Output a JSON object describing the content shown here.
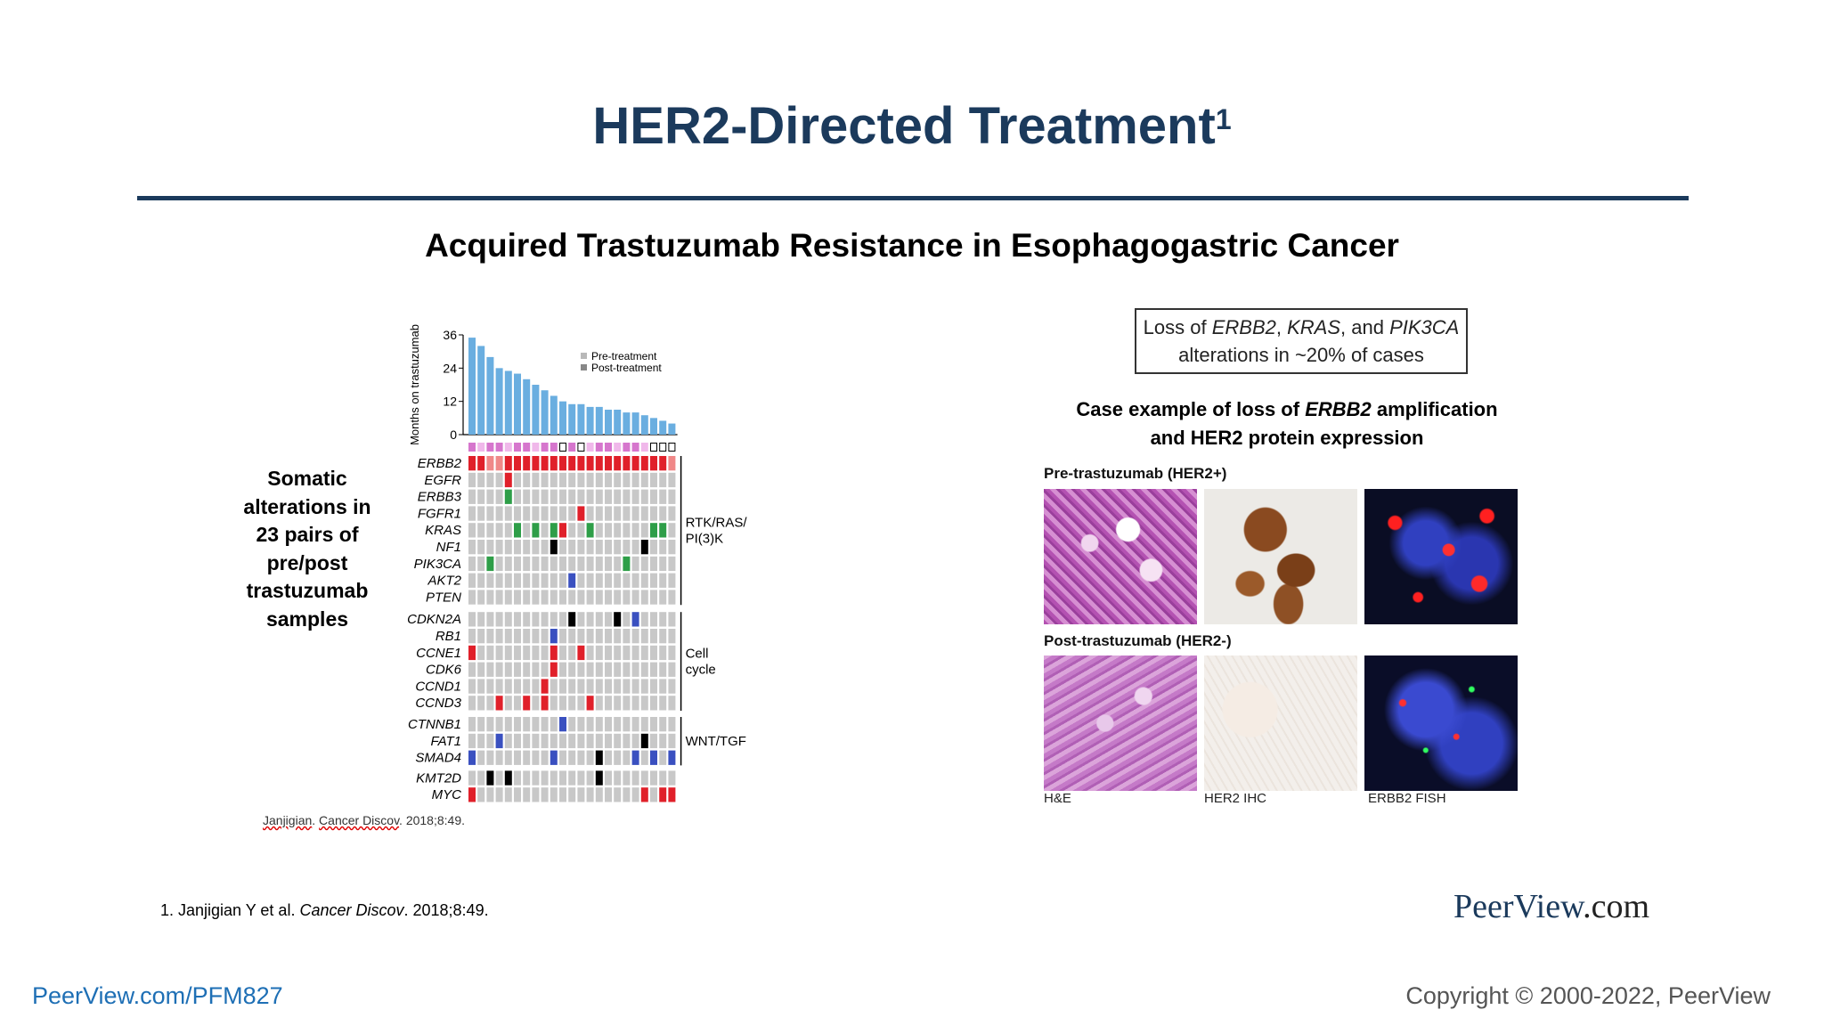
{
  "slide": {
    "title": "HER2-Directed Treatment",
    "title_sup": "1",
    "subtitle": "Acquired Trastuzumab Resistance in Esophagogastric Cancer",
    "somatic_label": [
      "Somatic",
      "alterations in",
      "23 pairs of",
      "pre/post",
      "trastuzumab",
      "samples"
    ],
    "source_small": {
      "author": "Janjigian",
      "journal": "Cancer Discov",
      "rest": ". 2018;8:49."
    },
    "footnote": {
      "prefix": "1. Janjigian Y et al. ",
      "journal": "Cancer Discov",
      "suffix": ". 2018;8:49."
    },
    "brand": {
      "name": "PeerView",
      "tld": ".com"
    },
    "footer_url": "PeerView.com/PFM827",
    "copyright": "Copyright © 2000-2022, PeerView"
  },
  "right_panel": {
    "callout": {
      "loss": "Loss of ",
      "g1": "ERBB2",
      "sep1": ", ",
      "g2": "KRAS",
      "sep2": ", and ",
      "g3": "PIK3CA",
      "line2": "alterations in ~20% of cases"
    },
    "case_title": {
      "line1_prefix": "Case example of loss of ",
      "line1_gene": "ERBB2",
      "line1_suffix": " amplification",
      "line2": "and HER2 protein expression"
    },
    "pre_label": "Pre-trastuzumab (HER2+)",
    "post_label": "Post-trastuzumab (HER2-)",
    "captions": [
      "H&E",
      "HER2 IHC",
      "ERBB2 FISH"
    ]
  },
  "chart_data": {
    "type": "bar",
    "ylabel": "Months on trastuzumab",
    "yticks": [
      0,
      12,
      24,
      36
    ],
    "ylim": [
      0,
      36
    ],
    "values": [
      35,
      32,
      28,
      24,
      23,
      22,
      20,
      18,
      16,
      14,
      12,
      11,
      11,
      10,
      10,
      9,
      9,
      8,
      8,
      7,
      6,
      5,
      4
    ],
    "legend": [
      "Pre-treatment",
      "Post-treatment"
    ],
    "legend_position": "top-right",
    "genes": [
      "ERBB2",
      "EGFR",
      "ERBB3",
      "FGFR1",
      "KRAS",
      "NF1",
      "PIK3CA",
      "AKT2",
      "PTEN",
      "CDKN2A",
      "RB1",
      "CCNE1",
      "CDK6",
      "CCND1",
      "CCND3",
      "CTNNB1",
      "FAT1",
      "SMAD4",
      "KMT2D",
      "MYC"
    ],
    "gene_groups": [
      {
        "label_lines": [
          "RTK/RAS/",
          "PI(3)K"
        ],
        "start": 0,
        "end": 8
      },
      {
        "label_lines": [
          "Cell",
          "cycle"
        ],
        "start": 9,
        "end": 14
      },
      {
        "label_lines": [
          "WNT/TGF"
        ],
        "start": 15,
        "end": 17
      }
    ],
    "colors": {
      "bar": "#6aaee0",
      "amp": "#e0202a",
      "mut": "#2e9e48",
      "del": "#3a50c0",
      "trunc": "#000000",
      "cell": "#c8c8c8",
      "pair": "#d676cd"
    }
  }
}
